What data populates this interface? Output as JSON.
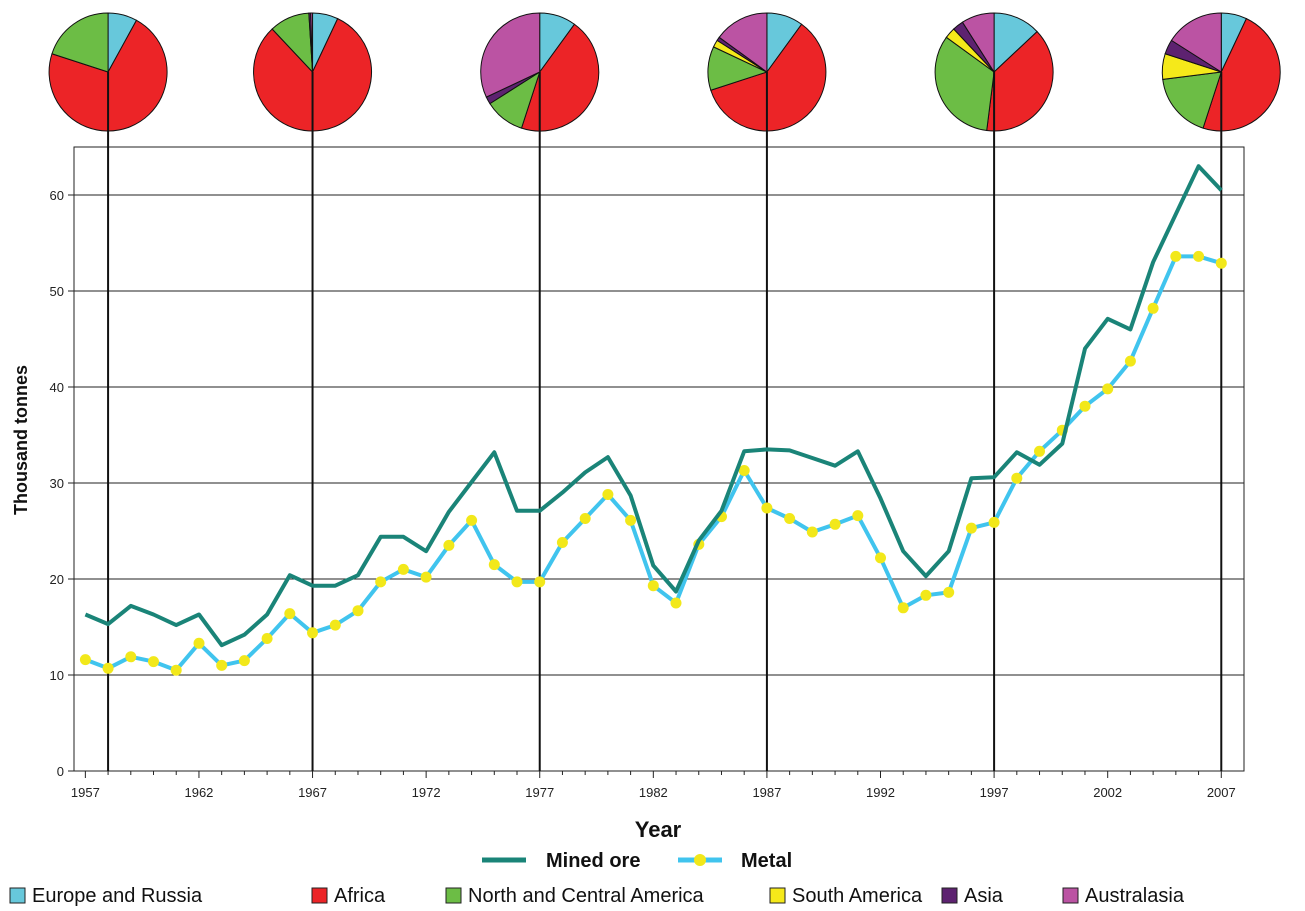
{
  "chart_data": {
    "type": "line",
    "xlabel": "Year",
    "ylabel": "Thousand tonnes",
    "xlim": [
      1956.5,
      2008
    ],
    "ylim": [
      0,
      65
    ],
    "x_ticks": [
      "1957",
      "1962",
      "1967",
      "1972",
      "1977",
      "1982",
      "1987",
      "1992",
      "1997",
      "2002",
      "2007"
    ],
    "y_ticks": [
      "0",
      "10",
      "20",
      "30",
      "40",
      "50",
      "60"
    ],
    "grid": "horizontal",
    "legend_position": "bottom",
    "series": [
      {
        "name": "Mined ore",
        "color": "#1a8478",
        "x": [
          1957,
          1958,
          1959,
          1960,
          1961,
          1962,
          1963,
          1964,
          1965,
          1966,
          1967,
          1968,
          1969,
          1970,
          1971,
          1972,
          1973,
          1974,
          1975,
          1976,
          1977,
          1978,
          1979,
          1980,
          1981,
          1982,
          1983,
          1984,
          1985,
          1986,
          1987,
          1988,
          1989,
          1990,
          1991,
          1992,
          1993,
          1994,
          1995,
          1996,
          1997,
          1998,
          1999,
          2000,
          2001,
          2002,
          2003,
          2004,
          2005,
          2006,
          2007
        ],
        "values": [
          16.3,
          15.3,
          17.2,
          16.3,
          15.2,
          16.3,
          13.1,
          14.2,
          16.3,
          20.4,
          19.3,
          19.3,
          20.4,
          24.4,
          24.4,
          22.9,
          27.0,
          30.1,
          33.2,
          27.1,
          27.1,
          29.0,
          31.1,
          32.7,
          28.7,
          21.4,
          18.7,
          24.0,
          27.1,
          33.3,
          33.5,
          33.4,
          32.6,
          31.8,
          33.3,
          28.4,
          22.9,
          20.3,
          22.9,
          30.5,
          30.6,
          33.2,
          31.9,
          34.1,
          44.0,
          47.1,
          46.0,
          53.0,
          58.0,
          63.0,
          60.5
        ]
      },
      {
        "name": "Metal",
        "color": "#40c4ee",
        "marker_color": "#f2e81a",
        "x": [
          1957,
          1958,
          1959,
          1960,
          1961,
          1962,
          1963,
          1964,
          1965,
          1966,
          1967,
          1968,
          1969,
          1970,
          1971,
          1972,
          1973,
          1974,
          1975,
          1976,
          1977,
          1978,
          1979,
          1980,
          1981,
          1982,
          1983,
          1984,
          1985,
          1986,
          1987,
          1988,
          1989,
          1990,
          1991,
          1992,
          1993,
          1994,
          1995,
          1996,
          1997,
          1998,
          1999,
          2000,
          2001,
          2002,
          2003,
          2004,
          2005,
          2006,
          2007
        ],
        "values": [
          11.6,
          10.7,
          11.9,
          11.4,
          10.5,
          13.3,
          11.0,
          11.5,
          13.8,
          16.4,
          14.4,
          15.2,
          16.7,
          19.7,
          21.0,
          20.2,
          23.5,
          26.1,
          21.5,
          19.7,
          19.7,
          23.8,
          26.3,
          28.8,
          26.1,
          19.3,
          17.5,
          23.6,
          26.5,
          31.3,
          27.4,
          26.3,
          24.9,
          25.7,
          26.6,
          22.2,
          17.0,
          18.3,
          18.6,
          25.3,
          25.9,
          30.5,
          33.3,
          35.5,
          38.0,
          39.8,
          42.7,
          48.2,
          53.6,
          53.6,
          52.9
        ]
      }
    ],
    "pie_years": [
      1958,
      1967,
      1977,
      1987,
      1997,
      2007
    ],
    "pie_categories": [
      {
        "name": "Europe and Russia",
        "color": "#67c8db"
      },
      {
        "name": "Africa",
        "color": "#ec2427"
      },
      {
        "name": "North and Central America",
        "color": "#6cbd45"
      },
      {
        "name": "South America",
        "color": "#f5e91a"
      },
      {
        "name": "Asia",
        "color": "#5d2270"
      },
      {
        "name": "Australasia",
        "color": "#bb53a3"
      }
    ],
    "pies": [
      {
        "year": 1958,
        "shares": [
          0.08,
          0.72,
          0.2,
          0.0,
          0.0,
          0.0
        ]
      },
      {
        "year": 1967,
        "shares": [
          0.07,
          0.81,
          0.11,
          0.0,
          0.005,
          0.005
        ]
      },
      {
        "year": 1977,
        "shares": [
          0.1,
          0.45,
          0.11,
          0.0,
          0.02,
          0.32
        ]
      },
      {
        "year": 1987,
        "shares": [
          0.1,
          0.6,
          0.12,
          0.02,
          0.01,
          0.15
        ]
      },
      {
        "year": 1997,
        "shares": [
          0.13,
          0.39,
          0.33,
          0.03,
          0.03,
          0.09
        ]
      },
      {
        "year": 2007,
        "shares": [
          0.07,
          0.48,
          0.18,
          0.07,
          0.04,
          0.16
        ]
      }
    ]
  }
}
